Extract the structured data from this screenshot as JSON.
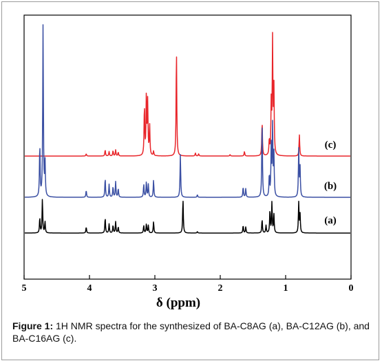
{
  "chart_data": {
    "type": "line",
    "xlabel": "δ (ppm)",
    "xlim": [
      5,
      0
    ],
    "x_reversed": true,
    "x_ticks": [
      "5",
      "4",
      "3",
      "2",
      "1",
      "0"
    ],
    "x_tick_values": [
      5,
      4,
      3,
      2,
      1,
      0
    ],
    "y_ticks_shown": false,
    "grid": false,
    "series": [
      {
        "label": "(c)",
        "color": "#e8252a",
        "baseline": 0,
        "peaks": [
          {
            "ppm": 4.05,
            "h": 0.03
          },
          {
            "ppm": 3.76,
            "h": 0.08
          },
          {
            "ppm": 3.7,
            "h": 0.06
          },
          {
            "ppm": 3.64,
            "h": 0.07
          },
          {
            "ppm": 3.6,
            "h": 0.08
          },
          {
            "ppm": 3.56,
            "h": 0.05
          },
          {
            "ppm": 3.16,
            "h": 0.65
          },
          {
            "ppm": 3.13,
            "h": 0.8
          },
          {
            "ppm": 3.11,
            "h": 0.7
          },
          {
            "ppm": 3.08,
            "h": 0.4
          },
          {
            "ppm": 3.02,
            "h": 0.06
          },
          {
            "ppm": 2.67,
            "h": 1.4
          },
          {
            "ppm": 2.38,
            "h": 0.04
          },
          {
            "ppm": 2.33,
            "h": 0.03
          },
          {
            "ppm": 1.85,
            "h": 0.02
          },
          {
            "ppm": 1.63,
            "h": 0.06
          },
          {
            "ppm": 1.36,
            "h": 0.45
          },
          {
            "ppm": 1.25,
            "h": 0.2
          },
          {
            "ppm": 1.22,
            "h": 0.7
          },
          {
            "ppm": 1.2,
            "h": 1.5
          },
          {
            "ppm": 1.18,
            "h": 0.9
          },
          {
            "ppm": 0.79,
            "h": 0.28
          }
        ]
      },
      {
        "label": "(b)",
        "color": "#3a4fa3",
        "baseline": 0,
        "peaks": [
          {
            "ppm": 4.76,
            "h": 0.6
          },
          {
            "ppm": 4.71,
            "h": 2.0
          },
          {
            "ppm": 4.68,
            "h": 0.4
          },
          {
            "ppm": 4.05,
            "h": 0.08
          },
          {
            "ppm": 3.76,
            "h": 0.22
          },
          {
            "ppm": 3.7,
            "h": 0.15
          },
          {
            "ppm": 3.64,
            "h": 0.12
          },
          {
            "ppm": 3.6,
            "h": 0.18
          },
          {
            "ppm": 3.56,
            "h": 0.1
          },
          {
            "ppm": 3.17,
            "h": 0.15
          },
          {
            "ppm": 3.13,
            "h": 0.18
          },
          {
            "ppm": 3.1,
            "h": 0.15
          },
          {
            "ppm": 3.02,
            "h": 0.2
          },
          {
            "ppm": 2.61,
            "h": 0.5
          },
          {
            "ppm": 2.35,
            "h": 0.03
          },
          {
            "ppm": 1.65,
            "h": 0.12
          },
          {
            "ppm": 1.61,
            "h": 0.1
          },
          {
            "ppm": 1.36,
            "h": 0.9
          },
          {
            "ppm": 1.25,
            "h": 0.25
          },
          {
            "ppm": 1.22,
            "h": 0.6
          },
          {
            "ppm": 1.2,
            "h": 0.8
          },
          {
            "ppm": 1.18,
            "h": 0.5
          },
          {
            "ppm": 0.8,
            "h": 0.55
          },
          {
            "ppm": 0.78,
            "h": 0.35
          }
        ]
      },
      {
        "label": "(a)",
        "color": "#000000",
        "baseline": 0,
        "peaks": [
          {
            "ppm": 4.76,
            "h": 0.2
          },
          {
            "ppm": 4.72,
            "h": 0.45
          },
          {
            "ppm": 4.68,
            "h": 0.15
          },
          {
            "ppm": 4.05,
            "h": 0.08
          },
          {
            "ppm": 3.76,
            "h": 0.2
          },
          {
            "ppm": 3.7,
            "h": 0.12
          },
          {
            "ppm": 3.64,
            "h": 0.1
          },
          {
            "ppm": 3.6,
            "h": 0.15
          },
          {
            "ppm": 3.56,
            "h": 0.08
          },
          {
            "ppm": 3.17,
            "h": 0.1
          },
          {
            "ppm": 3.13,
            "h": 0.12
          },
          {
            "ppm": 3.1,
            "h": 0.1
          },
          {
            "ppm": 3.02,
            "h": 0.15
          },
          {
            "ppm": 2.57,
            "h": 0.45
          },
          {
            "ppm": 2.35,
            "h": 0.02
          },
          {
            "ppm": 1.65,
            "h": 0.1
          },
          {
            "ppm": 1.61,
            "h": 0.08
          },
          {
            "ppm": 1.36,
            "h": 0.18
          },
          {
            "ppm": 1.3,
            "h": 0.1
          },
          {
            "ppm": 1.24,
            "h": 0.3
          },
          {
            "ppm": 1.21,
            "h": 0.4
          },
          {
            "ppm": 1.18,
            "h": 0.25
          },
          {
            "ppm": 0.8,
            "h": 0.4
          },
          {
            "ppm": 0.78,
            "h": 0.25
          }
        ]
      }
    ]
  },
  "caption": {
    "label": "Figure 1:",
    "text": " 1H NMR spectra for the synthesized of BA-C8AG (a), BA-C12AG (b), and BA-C16AG (c)."
  }
}
